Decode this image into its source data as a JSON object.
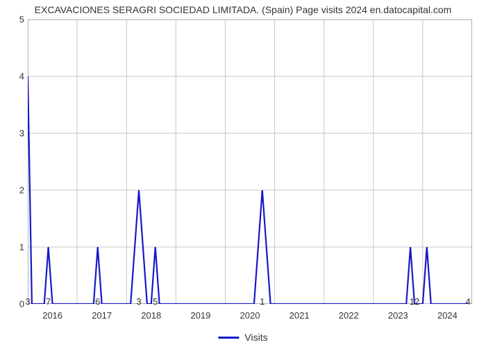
{
  "chart": {
    "type": "line",
    "title": "EXCAVACIONES SERAGRI SOCIEDAD LIMITADA. (Spain) Page visits 2024 en.datocapital.com",
    "title_fontsize": 14,
    "title_color": "#333333",
    "background_color": "#ffffff",
    "grid_color": "#c8c8c8",
    "axis_color": "#666666",
    "line_color": "#1818c8",
    "line_width": 2.2,
    "ylim": [
      0,
      5
    ],
    "ytick_step": 1,
    "ytick_labels": [
      "0",
      "1",
      "2",
      "3",
      "4",
      "5"
    ],
    "yticks": [
      0,
      1,
      2,
      3,
      4,
      5
    ],
    "xlim": [
      0,
      108
    ],
    "xtick_positions": [
      6,
      18,
      30,
      42,
      54,
      66,
      78,
      90,
      102
    ],
    "xtick_labels": [
      "2016",
      "2017",
      "2018",
      "2019",
      "2020",
      "2021",
      "2022",
      "2023",
      "2024"
    ],
    "x_major_gridlines": [
      0,
      12,
      24,
      36,
      48,
      60,
      72,
      84,
      96,
      108
    ],
    "data_labels": [
      {
        "x": 0,
        "text": "3"
      },
      {
        "x": 5,
        "text": "7"
      },
      {
        "x": 17,
        "text": "6"
      },
      {
        "x": 27,
        "text": "3"
      },
      {
        "x": 31,
        "text": "5"
      },
      {
        "x": 57,
        "text": "1"
      },
      {
        "x": 94,
        "text": "12"
      },
      {
        "x": 107,
        "text": "4"
      }
    ],
    "series": {
      "name": "Visits",
      "points": [
        [
          0,
          4
        ],
        [
          1,
          0
        ],
        [
          4,
          0
        ],
        [
          5,
          1
        ],
        [
          6,
          0
        ],
        [
          16,
          0
        ],
        [
          17,
          1
        ],
        [
          18,
          0
        ],
        [
          25,
          0
        ],
        [
          26,
          1
        ],
        [
          27,
          2
        ],
        [
          28,
          1
        ],
        [
          29,
          0
        ],
        [
          30,
          0
        ],
        [
          31,
          1
        ],
        [
          32,
          0
        ],
        [
          55,
          0
        ],
        [
          56,
          1
        ],
        [
          57,
          2
        ],
        [
          58,
          1
        ],
        [
          59,
          0
        ],
        [
          92,
          0
        ],
        [
          93,
          1
        ],
        [
          94,
          0
        ],
        [
          96,
          0
        ],
        [
          97,
          1
        ],
        [
          98,
          0
        ],
        [
          107,
          0
        ]
      ]
    },
    "legend": {
      "label": "Visits",
      "color": "#1818c8"
    }
  }
}
